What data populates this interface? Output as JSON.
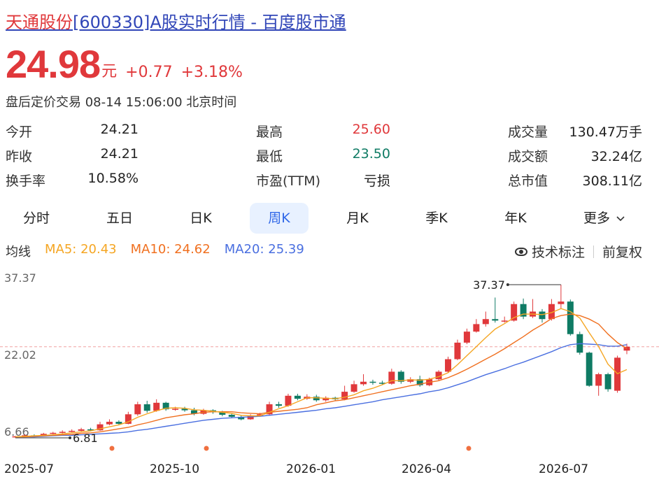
{
  "title": {
    "name": "天通股份",
    "rest": "[600330]A股实时行情 - 百度股市通"
  },
  "quote": {
    "price": "24.98",
    "unit": "元",
    "change": "+0.77",
    "change_pct": "+3.18%",
    "status": "盘后定价交易 08-14 15:06:00 北京时间"
  },
  "stats": [
    {
      "label": "今开",
      "value": "24.21",
      "tone": "plain"
    },
    {
      "label": "昨收",
      "value": "24.21",
      "tone": "plain"
    },
    {
      "label": "换手率",
      "value": "10.58%",
      "tone": "plain"
    },
    {
      "label": "最高",
      "value": "25.60",
      "tone": "up"
    },
    {
      "label": "最低",
      "value": "23.50",
      "tone": "down"
    },
    {
      "label": "市盈(TTM)",
      "value": "亏损",
      "tone": "plain"
    },
    {
      "label": "成交量",
      "value": "130.47万手",
      "tone": "plain"
    },
    {
      "label": "成交额",
      "value": "32.24亿",
      "tone": "plain"
    },
    {
      "label": "总市值",
      "value": "308.11亿",
      "tone": "plain"
    }
  ],
  "tabs": [
    "分时",
    "五日",
    "日K",
    "周K",
    "月K",
    "季K",
    "年K",
    "更多"
  ],
  "active_tab": "周K",
  "ma": {
    "label": "均线",
    "ma5": "MA5: 20.43",
    "ma10": "MA10: 24.62",
    "ma20": "MA20: 25.39",
    "tech_label": "技术标注",
    "adjust_label": "前复权"
  },
  "colors": {
    "up": "#e0383b",
    "down": "#0f7b64",
    "ma5": "#f5a623",
    "ma10": "#f07020",
    "ma20": "#4a6fe0",
    "accent": "#3068e8"
  },
  "chart_data": {
    "type": "candlestick",
    "y_ticks": [
      "37.37",
      "22.02",
      "6.66"
    ],
    "ylim": [
      6.66,
      37.37
    ],
    "current_price": 24.98,
    "annotations": {
      "max": "37.37",
      "min": "6.81"
    },
    "x_labels": [
      "2025-07",
      "2025-10",
      "2026-01",
      "2026-04",
      "2026-07"
    ],
    "candles": [
      [
        6.9,
        7.1,
        6.8,
        7.2
      ],
      [
        7.1,
        7.3,
        7.0,
        7.5
      ],
      [
        7.3,
        7.2,
        7.0,
        7.5
      ],
      [
        7.3,
        7.6,
        7.2,
        7.8
      ],
      [
        7.6,
        7.8,
        7.5,
        8.0
      ],
      [
        7.8,
        8.0,
        7.7,
        8.3
      ],
      [
        8.0,
        8.2,
        7.9,
        8.5
      ],
      [
        8.2,
        8.5,
        8.1,
        8.8
      ],
      [
        8.5,
        8.3,
        8.1,
        8.8
      ],
      [
        8.3,
        9.5,
        8.2,
        10.0
      ],
      [
        9.5,
        10.0,
        9.3,
        10.5
      ],
      [
        10.0,
        9.6,
        9.3,
        10.3
      ],
      [
        9.6,
        11.5,
        9.5,
        12.0
      ],
      [
        11.5,
        13.5,
        11.2,
        14.0
      ],
      [
        13.5,
        12.2,
        11.8,
        14.2
      ],
      [
        12.2,
        13.8,
        12.0,
        14.5
      ],
      [
        13.8,
        12.5,
        12.2,
        14.0
      ],
      [
        12.5,
        12.6,
        12.2,
        13.0
      ],
      [
        12.6,
        12.3,
        12.0,
        13.0
      ],
      [
        12.3,
        11.6,
        11.3,
        12.8
      ],
      [
        11.6,
        12.3,
        11.4,
        12.6
      ],
      [
        12.3,
        11.9,
        11.6,
        12.5
      ],
      [
        11.9,
        11.4,
        11.1,
        12.2
      ],
      [
        11.4,
        11.0,
        10.7,
        11.7
      ],
      [
        11.0,
        10.5,
        10.3,
        11.2
      ],
      [
        10.5,
        11.2,
        10.4,
        11.5
      ],
      [
        11.2,
        11.5,
        11.0,
        11.8
      ],
      [
        11.5,
        13.5,
        11.3,
        14.0
      ],
      [
        13.5,
        13.2,
        12.8,
        14.0
      ],
      [
        13.2,
        15.2,
        13.0,
        15.6
      ],
      [
        15.2,
        14.6,
        14.3,
        15.6
      ],
      [
        14.6,
        15.0,
        14.4,
        15.5
      ],
      [
        15.0,
        14.3,
        14.0,
        15.4
      ],
      [
        14.3,
        14.8,
        14.0,
        15.1
      ],
      [
        14.8,
        14.5,
        14.2,
        15.0
      ],
      [
        14.5,
        16.0,
        14.3,
        17.2
      ],
      [
        16.0,
        17.5,
        15.8,
        18.2
      ],
      [
        17.5,
        18.0,
        17.2,
        19.5
      ],
      [
        18.0,
        17.8,
        17.4,
        18.4
      ],
      [
        17.8,
        17.6,
        17.4,
        18.2
      ],
      [
        17.6,
        20.0,
        17.4,
        20.6
      ],
      [
        20.0,
        18.0,
        17.6,
        20.3
      ],
      [
        18.0,
        18.5,
        17.7,
        18.9
      ],
      [
        18.5,
        17.3,
        17.0,
        19.2
      ],
      [
        17.3,
        18.5,
        17.1,
        18.8
      ],
      [
        18.5,
        20.0,
        18.3,
        20.3
      ],
      [
        20.0,
        22.5,
        19.8,
        23.0
      ],
      [
        22.5,
        25.8,
        22.3,
        26.4
      ],
      [
        25.8,
        28.0,
        25.5,
        28.6
      ],
      [
        28.0,
        29.5,
        27.8,
        30.5
      ],
      [
        29.5,
        30.5,
        29.0,
        32.0
      ],
      [
        30.5,
        30.2,
        29.8,
        34.8
      ],
      [
        30.2,
        30.2,
        29.8,
        31.0
      ],
      [
        30.2,
        33.5,
        30.0,
        34.0
      ],
      [
        33.5,
        31.0,
        30.5,
        34.6
      ],
      [
        31.0,
        32.0,
        30.7,
        34.5
      ],
      [
        32.0,
        30.5,
        29.8,
        32.5
      ],
      [
        30.5,
        33.5,
        30.2,
        34.5
      ],
      [
        33.5,
        34.0,
        32.5,
        37.37
      ],
      [
        34.0,
        27.5,
        27.2,
        34.4
      ],
      [
        27.5,
        23.8,
        23.4,
        28.0
      ],
      [
        23.8,
        17.2,
        17.0,
        24.0
      ],
      [
        17.2,
        19.5,
        15.2,
        19.8
      ],
      [
        19.5,
        16.5,
        16.0,
        19.8
      ],
      [
        16.2,
        22.8,
        15.8,
        23.2
      ],
      [
        24.21,
        24.98,
        23.5,
        25.6
      ]
    ],
    "ma5": [
      7.0,
      7.1,
      7.2,
      7.3,
      7.4,
      7.6,
      7.8,
      8.0,
      8.2,
      8.6,
      9.0,
      9.4,
      10.0,
      10.9,
      11.6,
      12.2,
      12.7,
      12.8,
      12.7,
      12.4,
      12.3,
      12.1,
      11.9,
      11.7,
      11.3,
      11.2,
      11.2,
      11.9,
      12.6,
      13.2,
      14.0,
      14.8,
      14.8,
      14.7,
      14.6,
      14.9,
      15.4,
      16.2,
      16.7,
      17.4,
      18.2,
      18.2,
      18.4,
      18.3,
      18.5,
      19.0,
      19.8,
      21.4,
      23.2,
      25.0,
      26.8,
      28.5,
      29.6,
      30.8,
      31.5,
      31.5,
      31.4,
      31.8,
      32.6,
      32.0,
      30.7,
      27.8,
      25.0,
      21.5,
      19.6,
      20.43
    ],
    "ma10": [
      7.0,
      7.0,
      7.1,
      7.2,
      7.3,
      7.4,
      7.5,
      7.7,
      7.8,
      8.0,
      8.3,
      8.6,
      8.9,
      9.4,
      9.8,
      10.3,
      10.8,
      11.1,
      11.4,
      11.6,
      11.9,
      12.0,
      12.0,
      12.0,
      11.8,
      11.7,
      11.6,
      11.9,
      12.1,
      12.3,
      12.5,
      12.8,
      13.4,
      13.8,
      14.2,
      14.4,
      14.8,
      15.2,
      15.6,
      16.0,
      16.4,
      16.8,
      17.2,
      17.5,
      17.9,
      18.2,
      18.8,
      19.6,
      20.5,
      21.5,
      22.5,
      23.5,
      24.6,
      25.8,
      27.0,
      28.3,
      29.4,
      30.6,
      31.2,
      31.5,
      31.2,
      30.5,
      29.5,
      27.5,
      25.8,
      24.62
    ],
    "ma20": [
      7.0,
      7.0,
      7.0,
      7.1,
      7.2,
      7.3,
      7.3,
      7.4,
      7.5,
      7.6,
      7.7,
      7.8,
      8.0,
      8.3,
      8.5,
      8.8,
      9.1,
      9.4,
      9.7,
      10.0,
      10.3,
      10.5,
      10.7,
      10.8,
      10.9,
      11.0,
      11.1,
      11.3,
      11.5,
      11.7,
      11.9,
      12.1,
      12.3,
      12.6,
      12.8,
      13.1,
      13.4,
      13.7,
      14.0,
      14.4,
      14.7,
      15.0,
      15.3,
      15.6,
      16.0,
      16.3,
      16.8,
      17.4,
      18.0,
      18.7,
      19.4,
      20.0,
      20.6,
      21.3,
      21.9,
      22.6,
      23.3,
      24.0,
      24.8,
      25.4,
      25.6,
      25.5,
      25.4,
      25.1,
      25.1,
      25.39
    ]
  }
}
